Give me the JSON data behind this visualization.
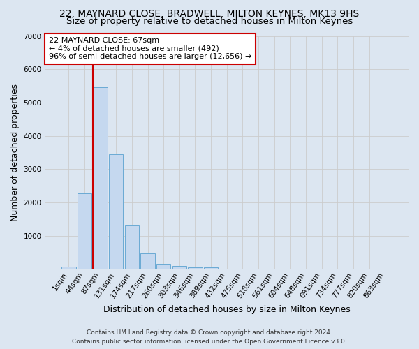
{
  "title": "22, MAYNARD CLOSE, BRADWELL, MILTON KEYNES, MK13 9HS",
  "subtitle": "Size of property relative to detached houses in Milton Keynes",
  "xlabel": "Distribution of detached houses by size in Milton Keynes",
  "ylabel": "Number of detached properties",
  "footer_line1": "Contains HM Land Registry data © Crown copyright and database right 2024.",
  "footer_line2": "Contains public sector information licensed under the Open Government Licence v3.0.",
  "annotation_title": "22 MAYNARD CLOSE: 67sqm",
  "annotation_line1": "← 4% of detached houses are smaller (492)",
  "annotation_line2": "96% of semi-detached houses are larger (12,656) →",
  "bar_labels": [
    "1sqm",
    "44sqm",
    "87sqm",
    "131sqm",
    "174sqm",
    "217sqm",
    "260sqm",
    "303sqm",
    "346sqm",
    "389sqm",
    "432sqm",
    "475sqm",
    "518sqm",
    "561sqm",
    "604sqm",
    "648sqm",
    "691sqm",
    "734sqm",
    "777sqm",
    "820sqm",
    "863sqm"
  ],
  "bar_values": [
    80,
    2270,
    5470,
    3440,
    1310,
    470,
    160,
    90,
    55,
    45,
    0,
    0,
    0,
    0,
    0,
    0,
    0,
    0,
    0,
    0,
    0
  ],
  "bar_color": "#c5d8ef",
  "bar_edge_color": "#6aaad4",
  "vline_color": "#cc0000",
  "vline_x": 1.53,
  "annotation_box_edgecolor": "#cc0000",
  "annotation_box_facecolor": "#ffffff",
  "ylim": [
    0,
    7000
  ],
  "yticks": [
    0,
    1000,
    2000,
    3000,
    4000,
    5000,
    6000,
    7000
  ],
  "grid_color": "#cccccc",
  "bg_color": "#dce6f1",
  "title_fontsize": 10,
  "subtitle_fontsize": 9.5,
  "axis_label_fontsize": 9,
  "tick_fontsize": 7.5,
  "footer_fontsize": 6.5
}
